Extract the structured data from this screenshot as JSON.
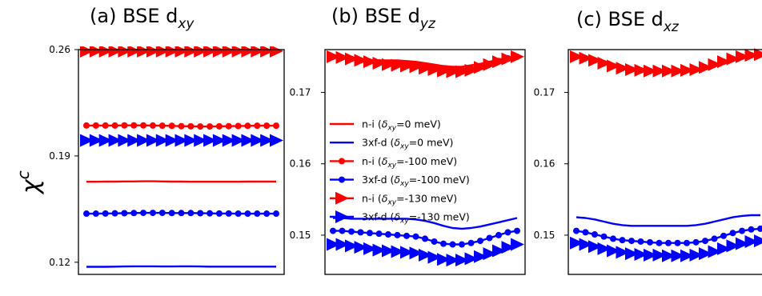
{
  "ylabel": {
    "base": "χ",
    "sup": "c"
  },
  "legend": {
    "placement": "center-left of panel (b)",
    "entries": [
      {
        "prefix": "n-i (",
        "delta_sub": "xy",
        "value": "=0 meV)",
        "color": "#ff0000",
        "marker": "none"
      },
      {
        "prefix": "3xf-d (",
        "delta_sub": "xy",
        "value": "=0 meV)",
        "color": "#0000ff",
        "marker": "none"
      },
      {
        "prefix": "n-i (",
        "delta_sub": "xy",
        "value": "=-100 meV)",
        "color": "#ff0000",
        "marker": "circle"
      },
      {
        "prefix": "3xf-d (",
        "delta_sub": "xy",
        "value": "=-100 meV)",
        "color": "#0000ff",
        "marker": "circle"
      },
      {
        "prefix": "n-i (",
        "delta_sub": "xy",
        "value": "=-130 meV)",
        "color": "#ff0000",
        "marker": "triangle"
      },
      {
        "prefix": "3xf-d (",
        "delta_sub": "xy",
        "value": "=-130 meV)",
        "color": "#0000ff",
        "marker": "triangle"
      }
    ]
  },
  "chart_data": [
    {
      "type": "line",
      "title": "(a) BSE d",
      "title_sub": "xy",
      "ylim": [
        0.112,
        0.26
      ],
      "yticks": [
        0.26,
        0.19,
        0.12
      ],
      "yticklabels": [
        "0.26",
        "0.19",
        "0.12"
      ],
      "x": [
        0,
        1,
        2,
        3,
        4,
        5,
        6,
        7,
        8,
        9,
        10,
        11,
        12,
        13,
        14,
        15,
        16,
        17,
        18,
        19,
        20
      ],
      "series": [
        {
          "color": "#ff0000",
          "marker": "none",
          "values": [
            0.173,
            0.173,
            0.1731,
            0.1731,
            0.1732,
            0.1732,
            0.1733,
            0.1733,
            0.1732,
            0.1731,
            0.1731,
            0.173,
            0.173,
            0.173,
            0.173,
            0.173,
            0.173,
            0.1731,
            0.1731,
            0.1731,
            0.1731
          ]
        },
        {
          "color": "#0000ff",
          "marker": "none",
          "values": [
            0.117,
            0.117,
            0.117,
            0.1171,
            0.1172,
            0.1173,
            0.1173,
            0.1173,
            0.1172,
            0.1172,
            0.1173,
            0.1173,
            0.1172,
            0.1171,
            0.1171,
            0.1171,
            0.1171,
            0.1171,
            0.1171,
            0.1171,
            0.1171
          ]
        },
        {
          "color": "#ff0000",
          "marker": "circle",
          "values": [
            0.21,
            0.21,
            0.21,
            0.21,
            0.2101,
            0.2101,
            0.2101,
            0.21,
            0.2099,
            0.2098,
            0.2096,
            0.2095,
            0.2094,
            0.2094,
            0.2095,
            0.2096,
            0.2097,
            0.2098,
            0.2099,
            0.2099,
            0.2099
          ]
        },
        {
          "color": "#0000ff",
          "marker": "circle",
          "values": [
            0.152,
            0.152,
            0.1521,
            0.1522,
            0.1523,
            0.1524,
            0.1525,
            0.1525,
            0.1525,
            0.1524,
            0.1524,
            0.1524,
            0.1523,
            0.1522,
            0.1521,
            0.1521,
            0.152,
            0.152,
            0.152,
            0.152,
            0.152
          ]
        },
        {
          "color": "#ff0000",
          "marker": "triangle",
          "values": [
            0.259,
            0.259,
            0.259,
            0.259,
            0.259,
            0.259,
            0.259,
            0.259,
            0.259,
            0.259,
            0.259,
            0.259,
            0.259,
            0.259,
            0.259,
            0.259,
            0.259,
            0.259,
            0.259,
            0.259,
            0.259
          ]
        },
        {
          "color": "#0000ff",
          "marker": "triangle",
          "values": [
            0.2002,
            0.2002,
            0.2002,
            0.2002,
            0.2002,
            0.2002,
            0.2002,
            0.2002,
            0.2002,
            0.2002,
            0.2002,
            0.2002,
            0.2002,
            0.2002,
            0.2002,
            0.2002,
            0.2002,
            0.2002,
            0.2002,
            0.2002,
            0.2002
          ]
        }
      ]
    },
    {
      "type": "line",
      "title": "(b) BSE d",
      "title_sub": "yz",
      "ylim": [
        0.1445,
        0.176
      ],
      "yticks": [
        0.17,
        0.16,
        0.15
      ],
      "yticklabels": [
        "0.17",
        "0.16",
        "0.15"
      ],
      "x": [
        0,
        1,
        2,
        3,
        4,
        5,
        6,
        7,
        8,
        9,
        10,
        11,
        12,
        13,
        14,
        15,
        16,
        17,
        18,
        19,
        20
      ],
      "series": [
        {
          "color": "#ff0000",
          "marker": "none",
          "values": [
            0.175,
            0.1749,
            0.1747,
            0.1746,
            0.1745,
            0.1745,
            0.1745,
            0.1745,
            0.1744,
            0.1743,
            0.1741,
            0.1739,
            0.1737,
            0.1736,
            0.1736,
            0.1738,
            0.174,
            0.1743,
            0.1746,
            0.1749,
            0.175
          ]
        },
        {
          "color": "#0000ff",
          "marker": "none",
          "values": [
            0.1524,
            0.1524,
            0.1523,
            0.1523,
            0.1523,
            0.1523,
            0.1523,
            0.1523,
            0.1523,
            0.1522,
            0.152,
            0.1517,
            0.1513,
            0.151,
            0.1509,
            0.151,
            0.1512,
            0.1515,
            0.1518,
            0.1521,
            0.1524
          ]
        },
        {
          "color": "#ff0000",
          "marker": "circle",
          "values": [
            0.175,
            0.1749,
            0.1747,
            0.1745,
            0.1743,
            0.1742,
            0.1741,
            0.1741,
            0.174,
            0.1739,
            0.1737,
            0.1735,
            0.1733,
            0.1732,
            0.1732,
            0.1734,
            0.1737,
            0.174,
            0.1744,
            0.1748,
            0.175
          ]
        },
        {
          "color": "#0000ff",
          "marker": "circle",
          "values": [
            0.1506,
            0.1506,
            0.1505,
            0.1504,
            0.1503,
            0.1502,
            0.1501,
            0.15,
            0.1499,
            0.1498,
            0.1495,
            0.1491,
            0.1488,
            0.1487,
            0.1487,
            0.1489,
            0.1492,
            0.1496,
            0.15,
            0.1504,
            0.1506
          ]
        },
        {
          "color": "#ff0000",
          "marker": "triangle",
          "values": [
            0.175,
            0.1749,
            0.1747,
            0.1745,
            0.1743,
            0.1741,
            0.1739,
            0.1738,
            0.1737,
            0.1736,
            0.1734,
            0.1732,
            0.173,
            0.1729,
            0.1729,
            0.1731,
            0.1735,
            0.1739,
            0.1743,
            0.1747,
            0.175
          ]
        },
        {
          "color": "#0000ff",
          "marker": "triangle",
          "values": [
            0.1487,
            0.1487,
            0.1485,
            0.1483,
            0.1481,
            0.1479,
            0.1478,
            0.1477,
            0.1476,
            0.1475,
            0.1472,
            0.1469,
            0.1466,
            0.1465,
            0.1465,
            0.1467,
            0.147,
            0.1474,
            0.1478,
            0.1483,
            0.1487
          ]
        }
      ]
    },
    {
      "type": "line",
      "title": "(c) BSE d",
      "title_sub": "xz",
      "ylim": [
        0.1445,
        0.176
      ],
      "yticks": [
        0.17,
        0.16,
        0.15
      ],
      "yticklabels": [
        "0.17",
        "0.16",
        "0.15"
      ],
      "x": [
        0,
        1,
        2,
        3,
        4,
        5,
        6,
        7,
        8,
        9,
        10,
        11,
        12,
        13,
        14,
        15,
        16,
        17,
        18,
        19,
        20
      ],
      "series": [
        {
          "color": "#ff0000",
          "marker": "none",
          "values": [
            0.175,
            0.1748,
            0.1745,
            0.1741,
            0.1737,
            0.1734,
            0.1732,
            0.1731,
            0.173,
            0.173,
            0.173,
            0.173,
            0.1731,
            0.1732,
            0.1735,
            0.1739,
            0.1743,
            0.1747,
            0.175,
            0.1752,
            0.1753
          ]
        },
        {
          "color": "#0000ff",
          "marker": "none",
          "values": [
            0.1525,
            0.1524,
            0.1522,
            0.1519,
            0.1516,
            0.1514,
            0.1513,
            0.1513,
            0.1513,
            0.1513,
            0.1513,
            0.1513,
            0.1513,
            0.1514,
            0.1516,
            0.1519,
            0.1522,
            0.1525,
            0.1527,
            0.1528,
            0.1528
          ]
        },
        {
          "color": "#ff0000",
          "marker": "circle",
          "values": [
            0.175,
            0.1748,
            0.1745,
            0.1741,
            0.1737,
            0.1734,
            0.1732,
            0.1731,
            0.173,
            0.173,
            0.173,
            0.173,
            0.1731,
            0.1732,
            0.1735,
            0.1739,
            0.1743,
            0.1747,
            0.175,
            0.1752,
            0.1753
          ]
        },
        {
          "color": "#0000ff",
          "marker": "circle",
          "values": [
            0.1506,
            0.1504,
            0.1501,
            0.1498,
            0.1495,
            0.1493,
            0.1492,
            0.1491,
            0.149,
            0.1489,
            0.1489,
            0.1489,
            0.1489,
            0.149,
            0.1492,
            0.1495,
            0.1499,
            0.1503,
            0.1506,
            0.1508,
            0.1509
          ]
        },
        {
          "color": "#ff0000",
          "marker": "triangle",
          "values": [
            0.175,
            0.1748,
            0.1745,
            0.1741,
            0.1737,
            0.1734,
            0.1732,
            0.1731,
            0.173,
            0.173,
            0.173,
            0.173,
            0.1731,
            0.1732,
            0.1735,
            0.1739,
            0.1743,
            0.1747,
            0.175,
            0.1752,
            0.1753
          ]
        },
        {
          "color": "#0000ff",
          "marker": "triangle",
          "values": [
            0.1489,
            0.1487,
            0.1484,
            0.1481,
            0.1478,
            0.1476,
            0.1474,
            0.1473,
            0.1472,
            0.1472,
            0.1471,
            0.1471,
            0.1471,
            0.1472,
            0.1474,
            0.1477,
            0.1481,
            0.1485,
            0.1488,
            0.1491,
            0.1492
          ]
        }
      ]
    }
  ]
}
